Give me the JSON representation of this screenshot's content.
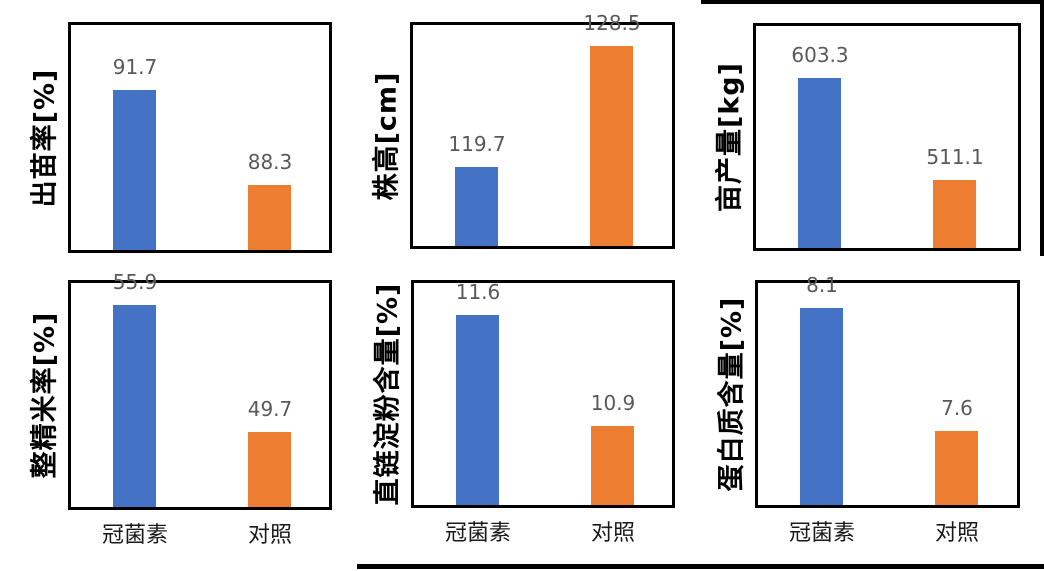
{
  "page": {
    "background": "#ffffff"
  },
  "colors": {
    "series_blue": "#4472C4",
    "series_orange": "#ED7D31",
    "value_label": "#595959",
    "axis_text": "#1a1a1a",
    "panel_border": "#000000"
  },
  "chart_data": [
    {
      "type": "bar",
      "axis_title": "出苗率[%]",
      "categories": [
        "冠菌素",
        "对照"
      ],
      "values": [
        91.7,
        88.3
      ],
      "value_labels": [
        "91.7",
        "88.3"
      ],
      "ylim": [
        86,
        94
      ],
      "x_labels_visible": false,
      "series_colors": [
        "#4472C4",
        "#ED7D31"
      ],
      "grid": false,
      "legend": "none"
    },
    {
      "type": "bar",
      "axis_title": "株高[cm]",
      "categories": [
        "冠菌素",
        "对照"
      ],
      "values": [
        119.7,
        128.5
      ],
      "value_labels": [
        "119.7",
        "128.5"
      ],
      "ylim": [
        114,
        130
      ],
      "x_labels_visible": false,
      "series_colors": [
        "#4472C4",
        "#ED7D31"
      ],
      "grid": false,
      "legend": "none"
    },
    {
      "type": "bar",
      "axis_title": "亩产量[kg]",
      "categories": [
        "冠菌素",
        "对照"
      ],
      "values": [
        603.3,
        511.1
      ],
      "value_labels": [
        "603.3",
        "511.1"
      ],
      "ylim": [
        450,
        650
      ],
      "x_labels_visible": false,
      "series_colors": [
        "#4472C4",
        "#ED7D31"
      ],
      "grid": false,
      "legend": "none"
    },
    {
      "type": "bar",
      "axis_title": "整精米率[%]",
      "categories": [
        "冠菌素",
        "对照"
      ],
      "values": [
        55.9,
        49.7
      ],
      "value_labels": [
        "55.9",
        "49.7"
      ],
      "ylim": [
        46,
        57
      ],
      "x_labels_visible": true,
      "series_colors": [
        "#4472C4",
        "#ED7D31"
      ],
      "grid": false,
      "legend": "none"
    },
    {
      "type": "bar",
      "axis_title": "直链淀粉含量[%]",
      "categories": [
        "冠菌素",
        "对照"
      ],
      "values": [
        11.6,
        10.9
      ],
      "value_labels": [
        "11.6",
        "10.9"
      ],
      "ylim": [
        10.4,
        11.8
      ],
      "x_labels_visible": true,
      "series_colors": [
        "#4472C4",
        "#ED7D31"
      ],
      "grid": false,
      "legend": "none"
    },
    {
      "type": "bar",
      "axis_title": "蛋白质含量[%]",
      "categories": [
        "冠菌素",
        "对照"
      ],
      "values": [
        8.1,
        7.6
      ],
      "value_labels": [
        "8.1",
        "7.6"
      ],
      "ylim": [
        7.3,
        8.2
      ],
      "x_labels_visible": true,
      "series_colors": [
        "#4472C4",
        "#ED7D31"
      ],
      "grid": false,
      "legend": "none"
    }
  ]
}
